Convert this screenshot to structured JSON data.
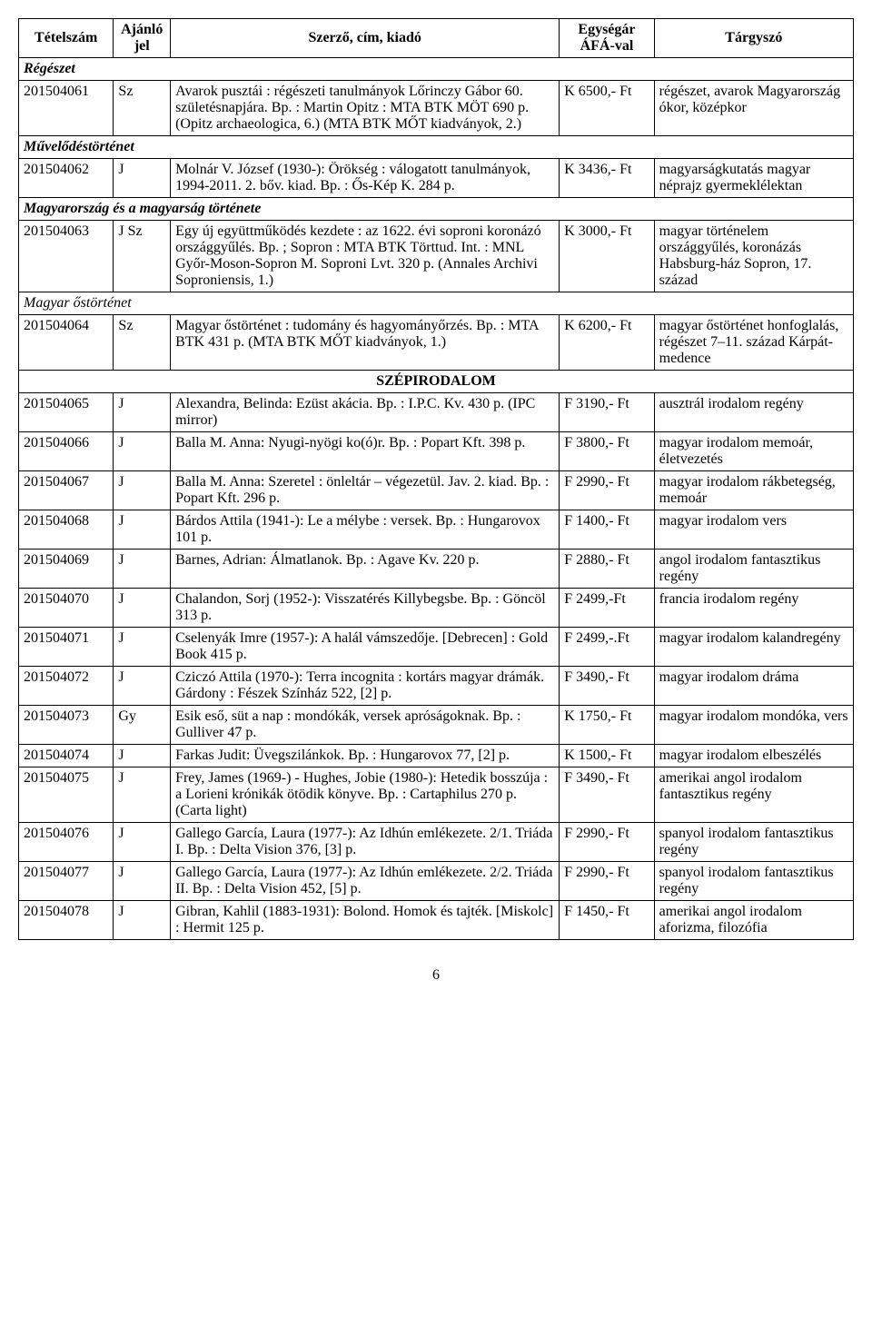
{
  "headers": {
    "c1": "Tételszám",
    "c2": "Ajánló jel",
    "c3": "Szerző, cím, kiadó",
    "c4": "Egységár ÁFÁ-val",
    "c5": "Tárgyszó"
  },
  "sections": {
    "regeszet": "Régészet",
    "muvelodes": "Művelődéstörténet",
    "magyarorszag": "Magyarország és a magyarság története",
    "ostortenet": "Magyar őstörténet",
    "szepirodalom": "SZÉPIRODALOM"
  },
  "pageNumber": "6",
  "rows": {
    "r61": {
      "id": "201504061",
      "jel": "Sz",
      "desc": "Avarok pusztái : régészeti tanulmányok Lőrinczy Gábor 60. születésnapjára. Bp. : Martin Opitz : MTA BTK MÖT 690 p. (Opitz archaeologica, 6.) (MTA BTK MŐT kiadványok, 2.)",
      "price": "K 6500,- Ft",
      "subj": "régészet, avarok Magyarország ókor, középkor"
    },
    "r62": {
      "id": "201504062",
      "jel": "J",
      "desc": "Molnár V. József (1930-): Örökség : válogatott tanulmányok, 1994-2011. 2. bőv. kiad. Bp. : Ős-Kép K. 284 p.",
      "price": "K 3436,- Ft",
      "subj": "magyarságkutatás magyar néprajz gyermeklélektan"
    },
    "r63": {
      "id": "201504063",
      "jel": "J Sz",
      "desc": "Egy új együttműködés kezdete : az 1622. évi soproni koronázó országgyűlés. Bp. ; Sopron : MTA BTK Törttud. Int. : MNL Győr-Moson-Sopron M. Soproni Lvt. 320 p. (Annales Archivi Soproniensis, 1.)",
      "price": "K 3000,- Ft",
      "subj": "magyar történelem országgyűlés, koronázás Habsburg-ház Sopron, 17. század"
    },
    "r64": {
      "id": "201504064",
      "jel": "Sz",
      "desc": "Magyar őstörténet : tudomány és hagyományőrzés. Bp. : MTA BTK 431 p. (MTA BTK MŐT kiadványok, 1.)",
      "price": "K 6200,- Ft",
      "subj": "magyar őstörténet honfoglalás, régészet 7–11. század Kárpát-medence"
    },
    "r65": {
      "id": "201504065",
      "jel": "J",
      "desc": "Alexandra, Belinda: Ezüst akácia. Bp. : I.P.C. Kv. 430 p. (IPC mirror)",
      "price": "F 3190,- Ft",
      "subj": "ausztrál irodalom regény"
    },
    "r66": {
      "id": "201504066",
      "jel": "J",
      "desc": "Balla M. Anna: Nyugi-nyögi ko(ó)r. Bp. : Popart Kft. 398 p.",
      "price": "F 3800,- Ft",
      "subj": "magyar irodalom memoár, életvezetés"
    },
    "r67": {
      "id": "201504067",
      "jel": "J",
      "desc": "Balla M. Anna: Szeretel : önleltár – végezetül. Jav. 2. kiad. Bp. : Popart Kft. 296 p.",
      "price": "F 2990,- Ft",
      "subj": "magyar irodalom rákbetegség, memoár"
    },
    "r68": {
      "id": "201504068",
      "jel": "J",
      "desc": "Bárdos Attila (1941-): Le a mélybe : versek. Bp. : Hungarovox 101 p.",
      "price": "F 1400,- Ft",
      "subj": "magyar irodalom vers"
    },
    "r69": {
      "id": "201504069",
      "jel": "J",
      "desc": "Barnes, Adrian: Álmatlanok. Bp. : Agave Kv. 220 p.",
      "price": "F 2880,- Ft",
      "subj": "angol irodalom fantasztikus regény"
    },
    "r70": {
      "id": "201504070",
      "jel": "J",
      "desc": "Chalandon, Sorj (1952-): Visszatérés Killybegsbe. Bp. : Göncöl 313 p.",
      "price": "F 2499,-Ft",
      "subj": "francia irodalom regény"
    },
    "r71": {
      "id": "201504071",
      "jel": "J",
      "desc": "Cselenyák Imre (1957-): A halál vámszedője. [Debrecen] : Gold Book 415 p.",
      "price": "F 2499,-.Ft",
      "subj": "magyar irodalom kalandregény"
    },
    "r72": {
      "id": "201504072",
      "jel": "J",
      "desc": "Cziczó Attila (1970-): Terra incognita : kortárs magyar drámák. Gárdony : Fészek Színház 522, [2] p.",
      "price": "F 3490,- Ft",
      "subj": "magyar irodalom dráma"
    },
    "r73": {
      "id": "201504073",
      "jel": "Gy",
      "desc": "Esik eső, süt a nap : mondókák, versek apróságoknak. Bp. : Gulliver 47 p.",
      "price": "K 1750,- Ft",
      "subj": "magyar irodalom mondóka, vers"
    },
    "r74": {
      "id": "201504074",
      "jel": "J",
      "desc": "Farkas Judit: Üvegszilánkok. Bp. : Hungarovox 77, [2] p.",
      "price": "K 1500,- Ft",
      "subj": "magyar irodalom elbeszélés"
    },
    "r75": {
      "id": "201504075",
      "jel": "J",
      "desc": "Frey, James (1969-) - Hughes, Jobie (1980-): Hetedik bosszúja : a Lorieni krónikák ötödik könyve. Bp. : Cartaphilus 270 p. (Carta light)",
      "price": "F 3490,- Ft",
      "subj": "amerikai angol irodalom fantasztikus regény"
    },
    "r76": {
      "id": "201504076",
      "jel": "J",
      "desc": "Gallego García, Laura (1977-): Az Idhún emlékezete. 2/1. Triáda I. Bp. : Delta Vision 376, [3] p.",
      "price": "F 2990,- Ft",
      "subj": "spanyol irodalom fantasztikus regény"
    },
    "r77": {
      "id": "201504077",
      "jel": "J",
      "desc": "Gallego García, Laura (1977-): Az Idhún emlékezete. 2/2. Triáda II. Bp. : Delta Vision 452, [5] p.",
      "price": "F 2990,- Ft",
      "subj": "spanyol irodalom fantasztikus regény"
    },
    "r78": {
      "id": "201504078",
      "jel": "J",
      "desc": "Gibran, Kahlil (1883-1931): Bolond. Homok és tajték. [Miskolc] : Hermit 125 p.",
      "price": "F 1450,- Ft",
      "subj": "amerikai angol irodalom aforizma, filozófia"
    }
  }
}
